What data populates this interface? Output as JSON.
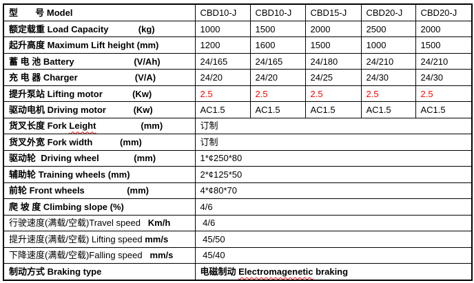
{
  "colors": {
    "red": "#ff0000",
    "border": "#000000",
    "text": "#000000",
    "background": "#ffffff"
  },
  "table": {
    "rows": [
      {
        "label": [
          {
            "t": "型       号 Model",
            "b": 1
          }
        ],
        "values": [
          "CBD10-J",
          "CBD10-J",
          "CBD15-J",
          "CBD20-J",
          "CBD20-J"
        ]
      },
      {
        "label": [
          {
            "t": "额定载重 Load Capacity            (kg)",
            "b": 1
          }
        ],
        "values": [
          "1000",
          "1500",
          "2000",
          "2500",
          "2000"
        ]
      },
      {
        "label": [
          {
            "t": "起升高度 Maximum Lift height (mm)",
            "b": 1
          }
        ],
        "values": [
          "1200",
          "1600",
          "1500",
          "1000",
          "1500"
        ]
      },
      {
        "label": [
          {
            "t": "蓄 电 池 Battery                        (V/Ah)",
            "b": 1
          }
        ],
        "values": [
          "24/165",
          "24/165",
          "24/180",
          "24/210",
          "24/210"
        ]
      },
      {
        "label": [
          {
            "t": "充 电 器 Charger                       (V/A)",
            "b": 1
          }
        ],
        "values": [
          "24/20",
          "24/20",
          "24/25",
          "24/30",
          "24/30"
        ]
      },
      {
        "label": [
          {
            "t": "提升泵站 Lifting motor            (Kw)",
            "b": 1
          }
        ],
        "values": [
          "2.5",
          "2.5",
          "2.5",
          "2.5",
          "2.5"
        ],
        "red": 1
      },
      {
        "label": [
          {
            "t": "驱动电机 Driving motor           (Kw)",
            "b": 1
          }
        ],
        "values": [
          "AC1.5",
          "AC1.5",
          "AC1.5",
          "AC1.5",
          "AC1.5"
        ]
      },
      {
        "label": [
          {
            "t": "货叉长度 Fork ",
            "b": 1
          },
          {
            "t": "Leight",
            "b": 1,
            "sq": 1
          },
          {
            "t": "                  (mm)",
            "b": 1
          }
        ],
        "span": [
          {
            "t": "订制"
          }
        ]
      },
      {
        "label": [
          {
            "t": "货叉外宽 Fork width           (mm)",
            "b": 1
          }
        ],
        "span": [
          {
            "t": "订制"
          }
        ]
      },
      {
        "label": [
          {
            "t": "驱动轮  Driving wheel              (mm)",
            "b": 1
          }
        ],
        "span": [
          {
            "t": "1*¢250*80"
          }
        ]
      },
      {
        "label": [
          {
            "t": "辅助轮 Training wheels (mm)",
            "b": 1
          }
        ],
        "span": [
          {
            "t": "2*¢125*50"
          }
        ]
      },
      {
        "label": [
          {
            "t": "前轮 Front wheels                 (mm)",
            "b": 1
          }
        ],
        "span": [
          {
            "t": "4*¢80*70"
          }
        ]
      },
      {
        "label": [
          {
            "t": "爬 坡 度 Climbing slope (%)",
            "b": 1
          }
        ],
        "span": [
          {
            "t": "4/6"
          }
        ]
      },
      {
        "label": [
          {
            "t": "行驶速度(满载/空载)Travel speed   ",
            "b": 0
          },
          {
            "t": "Km/h",
            "b": 1
          }
        ],
        "span": [
          {
            "t": " 4/6"
          }
        ]
      },
      {
        "label": [
          {
            "t": "提升速度(满载/空载) Lifting speed ",
            "b": 0
          },
          {
            "t": "mm/s",
            "b": 1
          }
        ],
        "span": [
          {
            "t": " 45/50"
          }
        ]
      },
      {
        "label": [
          {
            "t": "下降速度(满载/空载)Falling speed   ",
            "b": 0
          },
          {
            "t": "mm/s",
            "b": 1
          }
        ],
        "span": [
          {
            "t": " 45/40"
          }
        ]
      },
      {
        "label": [
          {
            "t": "制动方式 Braking type",
            "b": 1
          }
        ],
        "span": [
          {
            "t": "电磁制动 ",
            "b": 1
          },
          {
            "t": "Electromagenetic",
            "b": 1,
            "sq": 1
          },
          {
            "t": " braking",
            "b": 1
          }
        ]
      }
    ]
  }
}
